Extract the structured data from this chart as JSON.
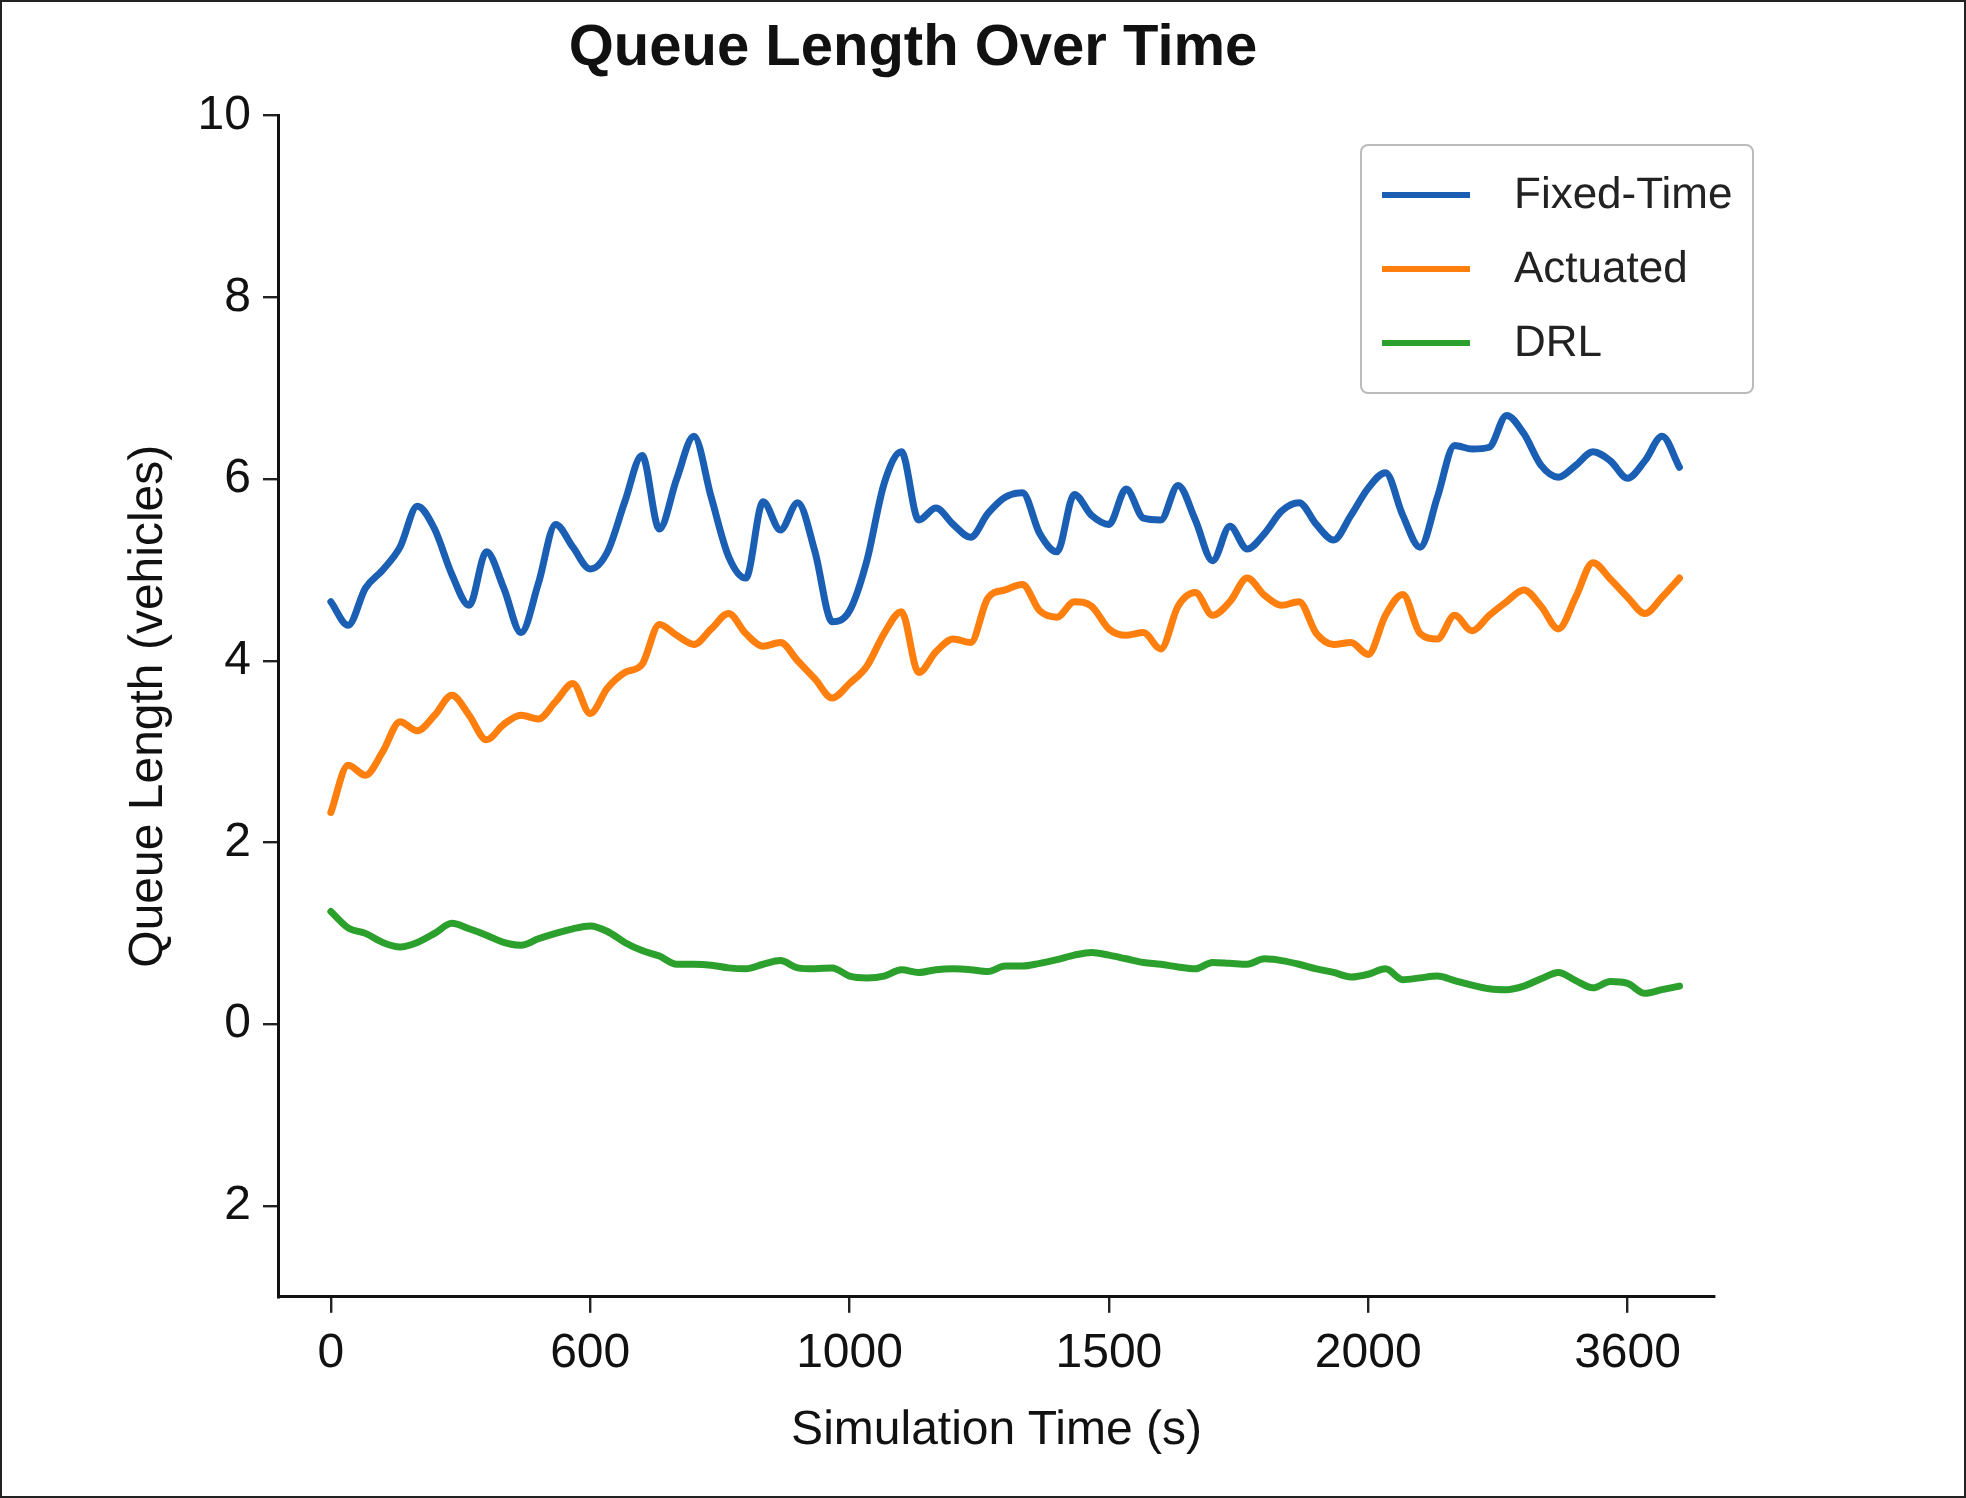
{
  "chart_data": {
    "type": "line",
    "title": "Queue Length Over Time",
    "xlabel": "Simulation Time (s)",
    "ylabel": "Queue Length (vehicles)",
    "categories": [
      null,
      null,
      null,
      "0",
      null,
      null,
      null,
      null,
      null,
      null,
      null,
      null,
      null,
      null,
      null,
      null,
      null,
      null,
      "600",
      null,
      null,
      null,
      null,
      null,
      null,
      null,
      null,
      null,
      null,
      null,
      null,
      null,
      null,
      "1000",
      null,
      null,
      null,
      null,
      null,
      null,
      null,
      null,
      null,
      null,
      null,
      null,
      null,
      null,
      "1500",
      null,
      null,
      null,
      null,
      null,
      null,
      null,
      null,
      null,
      null,
      null,
      null,
      null,
      null,
      "2000",
      null,
      null,
      null,
      null,
      null,
      null,
      null,
      null,
      null,
      null,
      null,
      null,
      null,
      null,
      "3600",
      null,
      null,
      null,
      null,
      null
    ],
    "ylim": [
      -3,
      10
    ],
    "yticks": [
      {
        "value": -2,
        "label": "2"
      },
      0,
      2,
      4,
      6,
      8,
      10
    ],
    "legend": "top right",
    "marker": "none",
    "line_style": "solid",
    "series": [
      {
        "name": "Fixed-Time",
        "color": "#1a5fb4",
        "values": [
          null,
          null,
          null,
          4.65,
          4.39,
          4.8,
          5.0,
          5.25,
          5.7,
          5.45,
          4.95,
          4.61,
          5.2,
          4.8,
          4.31,
          4.85,
          5.5,
          5.25,
          5.01,
          5.2,
          5.75,
          6.26,
          5.45,
          6.0,
          6.47,
          5.8,
          5.15,
          4.91,
          5.75,
          5.44,
          5.74,
          5.2,
          4.43,
          4.55,
          5.1,
          5.95,
          6.3,
          5.55,
          5.68,
          5.5,
          5.36,
          5.62,
          5.8,
          5.85,
          5.4,
          5.2,
          5.83,
          5.6,
          5.5,
          5.89,
          5.57,
          5.55,
          5.93,
          5.55,
          5.1,
          5.48,
          5.23,
          5.4,
          5.65,
          5.74,
          5.5,
          5.33,
          5.6,
          5.9,
          6.07,
          5.6,
          5.25,
          5.8,
          6.37,
          6.33,
          6.35,
          6.7,
          6.5,
          6.15,
          6.02,
          6.15,
          6.3,
          6.2,
          6.01,
          6.2,
          6.47,
          6.13,
          null,
          null
        ]
      },
      {
        "name": "Actuated",
        "color": "#ff7f0e",
        "values": [
          null,
          null,
          null,
          2.33,
          2.85,
          2.74,
          3.0,
          3.33,
          3.23,
          3.4,
          3.62,
          3.4,
          3.13,
          3.3,
          3.4,
          3.36,
          3.55,
          3.75,
          3.42,
          3.7,
          3.87,
          3.96,
          4.4,
          4.28,
          4.18,
          4.35,
          4.52,
          4.3,
          4.16,
          4.2,
          4.0,
          3.8,
          3.59,
          3.75,
          3.94,
          4.3,
          4.54,
          3.87,
          4.1,
          4.24,
          4.2,
          4.69,
          4.78,
          4.84,
          4.55,
          4.48,
          4.65,
          4.6,
          4.35,
          4.28,
          4.31,
          4.13,
          4.6,
          4.75,
          4.5,
          4.65,
          4.91,
          4.72,
          4.61,
          4.65,
          4.3,
          4.18,
          4.2,
          4.07,
          4.5,
          4.73,
          4.3,
          4.24,
          4.5,
          4.33,
          4.5,
          4.65,
          4.78,
          4.6,
          4.35,
          4.7,
          5.08,
          4.9,
          4.7,
          4.52,
          4.7,
          4.91,
          null,
          null
        ]
      },
      {
        "name": "DRL",
        "color": "#2ca02c",
        "values": [
          null,
          null,
          null,
          1.24,
          1.06,
          1.0,
          0.9,
          0.85,
          0.9,
          1.0,
          1.11,
          1.05,
          0.98,
          0.9,
          0.87,
          0.94,
          1.0,
          1.05,
          1.08,
          1.02,
          0.9,
          0.81,
          0.75,
          0.66,
          0.66,
          0.65,
          0.62,
          0.61,
          0.66,
          0.7,
          0.62,
          0.61,
          0.62,
          0.53,
          0.51,
          0.53,
          0.6,
          0.57,
          0.6,
          0.61,
          0.6,
          0.58,
          0.64,
          0.64,
          0.67,
          0.71,
          0.76,
          0.79,
          0.76,
          0.72,
          0.68,
          0.66,
          0.63,
          0.61,
          0.68,
          0.67,
          0.66,
          0.72,
          0.7,
          0.66,
          0.61,
          0.57,
          0.52,
          0.55,
          0.61,
          0.49,
          0.51,
          0.53,
          0.48,
          0.43,
          0.39,
          0.38,
          0.42,
          0.5,
          0.57,
          0.48,
          0.4,
          0.47,
          0.45,
          0.34,
          0.38,
          0.42,
          null,
          null
        ]
      }
    ]
  }
}
